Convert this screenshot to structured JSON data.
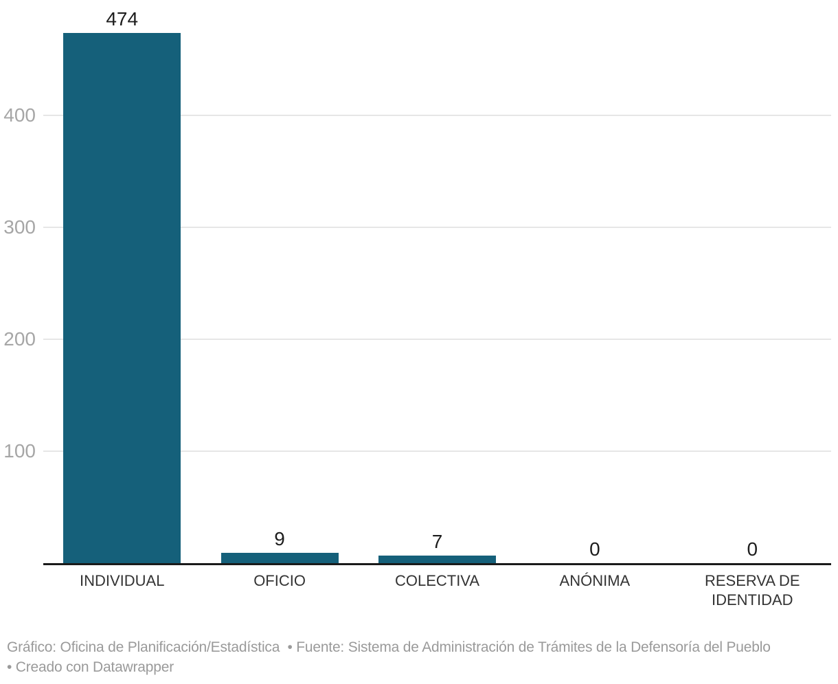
{
  "chart_data": {
    "type": "bar",
    "categories": [
      "INDIVIDUAL",
      "OFICIO",
      "COLECTIVA",
      "ANÓNIMA",
      "RESERVA DE IDENTIDAD"
    ],
    "values": [
      474,
      9,
      7,
      0,
      0
    ],
    "value_labels": [
      "474",
      "9",
      "7",
      "0",
      "0"
    ],
    "title": "",
    "xlabel": "",
    "ylabel": "",
    "ylim": [
      0,
      474
    ],
    "yticks": [
      100,
      200,
      300,
      400
    ],
    "grid": true,
    "legend": "none",
    "bar_color": "#15607a"
  },
  "footer": {
    "line1": "Gráfico: Oficina de Planificación/Estadística  • Fuente: Sistema de Administración de Trámites de la Defensoría del Pueblo",
    "line2": "• Creado con Datawrapper"
  },
  "colors": {
    "bar": "#15607a",
    "grid": "#e6e6e6",
    "axis_line": "#1a1a1a",
    "tick_label": "#a6a6a6",
    "value_label": "#1d1d1d",
    "category_label": "#333333",
    "footer_text": "#9a9a9a",
    "background": "#ffffff"
  }
}
